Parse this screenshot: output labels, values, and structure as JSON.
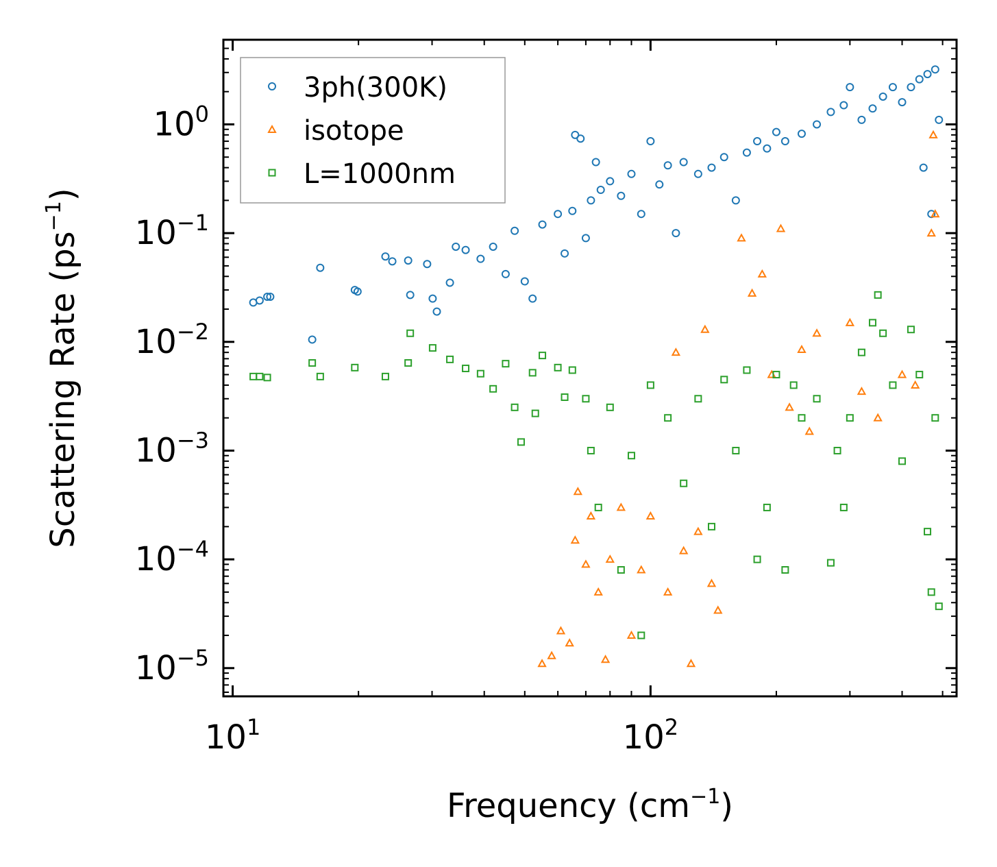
{
  "chart_data": {
    "type": "scatter",
    "xscale": "log",
    "yscale": "log",
    "xlim": [
      9.5,
      540
    ],
    "ylim": [
      5.5e-06,
      6.0
    ],
    "xlabel": "Frequency (cm",
    "xlabel_sup": "−1",
    "xlabel_close": ")",
    "ylabel": "Scattering Rate (ps",
    "ylabel_sup": "−1",
    "ylabel_close": ")",
    "x_ticks": [
      {
        "value": 10,
        "base": "10",
        "exp": "1"
      },
      {
        "value": 100,
        "base": "10",
        "exp": "2"
      }
    ],
    "y_ticks": [
      {
        "value": 1,
        "base": "10",
        "exp": "0"
      },
      {
        "value": 0.1,
        "base": "10",
        "exp": "−1"
      },
      {
        "value": 0.01,
        "base": "10",
        "exp": "−2"
      },
      {
        "value": 0.001,
        "base": "10",
        "exp": "−3"
      },
      {
        "value": 0.0001,
        "base": "10",
        "exp": "−4"
      },
      {
        "value": 1e-05,
        "base": "10",
        "exp": "−5"
      }
    ],
    "legend_position": "upper-left",
    "series": [
      {
        "name": "3ph(300K)",
        "marker": "circle",
        "color": "#1f77b4",
        "points": [
          [
            11.2,
            0.023
          ],
          [
            11.6,
            0.024
          ],
          [
            12.1,
            0.026
          ],
          [
            12.3,
            0.026
          ],
          [
            15.5,
            0.0105
          ],
          [
            16.2,
            0.048
          ],
          [
            19.6,
            0.03
          ],
          [
            19.9,
            0.029
          ],
          [
            23.2,
            0.061
          ],
          [
            24.1,
            0.055
          ],
          [
            26.3,
            0.056
          ],
          [
            26.6,
            0.027
          ],
          [
            29.2,
            0.052
          ],
          [
            30.1,
            0.025
          ],
          [
            30.8,
            0.019
          ],
          [
            33.1,
            0.035
          ],
          [
            34.2,
            0.075
          ],
          [
            36.1,
            0.07
          ],
          [
            39.2,
            0.058
          ],
          [
            42.0,
            0.075
          ],
          [
            45.0,
            0.042
          ],
          [
            47.3,
            0.105
          ],
          [
            50.0,
            0.036
          ],
          [
            52.2,
            0.025
          ],
          [
            55.1,
            0.12
          ],
          [
            60.0,
            0.15
          ],
          [
            62.3,
            0.065
          ],
          [
            65.0,
            0.16
          ],
          [
            66.0,
            0.8
          ],
          [
            68.0,
            0.74
          ],
          [
            70.0,
            0.09
          ],
          [
            72.0,
            0.2
          ],
          [
            74.0,
            0.45
          ],
          [
            76.0,
            0.25
          ],
          [
            80.0,
            0.3
          ],
          [
            85.0,
            0.22
          ],
          [
            90.0,
            0.35
          ],
          [
            95.0,
            0.15
          ],
          [
            100.0,
            0.7
          ],
          [
            105.0,
            0.28
          ],
          [
            110.0,
            0.42
          ],
          [
            115.0,
            0.1
          ],
          [
            120.0,
            0.45
          ],
          [
            130.0,
            0.35
          ],
          [
            140.0,
            0.4
          ],
          [
            150.0,
            0.5
          ],
          [
            160.0,
            0.2
          ],
          [
            170.0,
            0.55
          ],
          [
            180.0,
            0.7
          ],
          [
            190.0,
            0.6
          ],
          [
            200.0,
            0.85
          ],
          [
            210.0,
            0.7
          ],
          [
            230.0,
            0.82
          ],
          [
            250.0,
            1.0
          ],
          [
            270.0,
            1.3
          ],
          [
            290.0,
            1.5
          ],
          [
            300.0,
            2.2
          ],
          [
            320.0,
            1.1
          ],
          [
            340.0,
            1.4
          ],
          [
            360.0,
            1.8
          ],
          [
            380.0,
            2.2
          ],
          [
            400.0,
            1.6
          ],
          [
            420.0,
            2.2
          ],
          [
            440.0,
            2.6
          ],
          [
            450.0,
            0.4
          ],
          [
            460.0,
            2.9
          ],
          [
            470.0,
            0.15
          ],
          [
            480.0,
            3.2
          ],
          [
            490.0,
            1.1
          ]
        ]
      },
      {
        "name": "isotope",
        "marker": "triangle",
        "color": "#ff7f0e",
        "points": [
          [
            55.0,
            1.1e-05
          ],
          [
            58.0,
            1.3e-05
          ],
          [
            61.0,
            2.2e-05
          ],
          [
            64.0,
            1.7e-05
          ],
          [
            66.0,
            0.00015
          ],
          [
            67.0,
            0.00042
          ],
          [
            70.0,
            9e-05
          ],
          [
            72.0,
            0.00025
          ],
          [
            75.0,
            5e-05
          ],
          [
            78.0,
            1.2e-05
          ],
          [
            80.0,
            0.0001
          ],
          [
            85.0,
            0.0003
          ],
          [
            90.0,
            2e-05
          ],
          [
            95.0,
            8e-05
          ],
          [
            100.0,
            0.00025
          ],
          [
            110.0,
            5e-05
          ],
          [
            115.0,
            0.008
          ],
          [
            120.0,
            0.00012
          ],
          [
            125.0,
            1.1e-05
          ],
          [
            130.0,
            0.00018
          ],
          [
            135.0,
            0.013
          ],
          [
            140.0,
            6e-05
          ],
          [
            145.0,
            3.4e-05
          ],
          [
            165.0,
            0.09
          ],
          [
            175.0,
            0.028
          ],
          [
            185.0,
            0.042
          ],
          [
            195.0,
            0.005
          ],
          [
            205.0,
            0.11
          ],
          [
            215.0,
            0.0025
          ],
          [
            230.0,
            0.0085
          ],
          [
            240.0,
            0.0015
          ],
          [
            250.0,
            0.012
          ],
          [
            300.0,
            0.015
          ],
          [
            320.0,
            0.0035
          ],
          [
            350.0,
            0.002
          ],
          [
            400.0,
            0.005
          ],
          [
            430.0,
            0.004
          ],
          [
            470.0,
            0.1
          ],
          [
            475.0,
            0.8
          ],
          [
            480.0,
            0.15
          ]
        ]
      },
      {
        "name": "L=1000nm",
        "marker": "square",
        "color": "#2ca02c",
        "points": [
          [
            11.2,
            0.0048
          ],
          [
            11.6,
            0.0048
          ],
          [
            12.1,
            0.0047
          ],
          [
            15.5,
            0.0064
          ],
          [
            16.2,
            0.0048
          ],
          [
            19.6,
            0.0058
          ],
          [
            23.2,
            0.0048
          ],
          [
            26.3,
            0.0064
          ],
          [
            26.6,
            0.012
          ],
          [
            30.1,
            0.0088
          ],
          [
            33.1,
            0.0069
          ],
          [
            36.1,
            0.0057
          ],
          [
            39.2,
            0.0051
          ],
          [
            42.0,
            0.0037
          ],
          [
            45.0,
            0.0063
          ],
          [
            47.3,
            0.0025
          ],
          [
            49.0,
            0.0012
          ],
          [
            52.2,
            0.0052
          ],
          [
            53.0,
            0.0022
          ],
          [
            55.1,
            0.0075
          ],
          [
            60.0,
            0.0058
          ],
          [
            62.3,
            0.0031
          ],
          [
            65.0,
            0.0055
          ],
          [
            70.0,
            0.003
          ],
          [
            72.0,
            0.001
          ],
          [
            75.0,
            0.0003
          ],
          [
            80.0,
            0.0025
          ],
          [
            85.0,
            8e-05
          ],
          [
            90.0,
            0.0009
          ],
          [
            95.0,
            2e-05
          ],
          [
            100.0,
            0.004
          ],
          [
            110.0,
            0.002
          ],
          [
            120.0,
            0.0005
          ],
          [
            130.0,
            0.003
          ],
          [
            140.0,
            0.0002
          ],
          [
            150.0,
            0.0045
          ],
          [
            160.0,
            0.001
          ],
          [
            170.0,
            0.0055
          ],
          [
            180.0,
            0.0001
          ],
          [
            190.0,
            0.0003
          ],
          [
            200.0,
            0.005
          ],
          [
            210.0,
            8e-05
          ],
          [
            220.0,
            0.004
          ],
          [
            230.0,
            0.002
          ],
          [
            250.0,
            0.003
          ],
          [
            270.0,
            9.3e-05
          ],
          [
            280.0,
            0.001
          ],
          [
            290.0,
            0.0003
          ],
          [
            300.0,
            0.002
          ],
          [
            320.0,
            0.008
          ],
          [
            340.0,
            0.015
          ],
          [
            350.0,
            0.027
          ],
          [
            360.0,
            0.012
          ],
          [
            380.0,
            0.004
          ],
          [
            400.0,
            0.0008
          ],
          [
            420.0,
            0.013
          ],
          [
            440.0,
            0.005
          ],
          [
            460.0,
            0.00018
          ],
          [
            470.0,
            5e-05
          ],
          [
            480.0,
            0.002
          ],
          [
            490.0,
            3.7e-05
          ]
        ]
      }
    ]
  }
}
